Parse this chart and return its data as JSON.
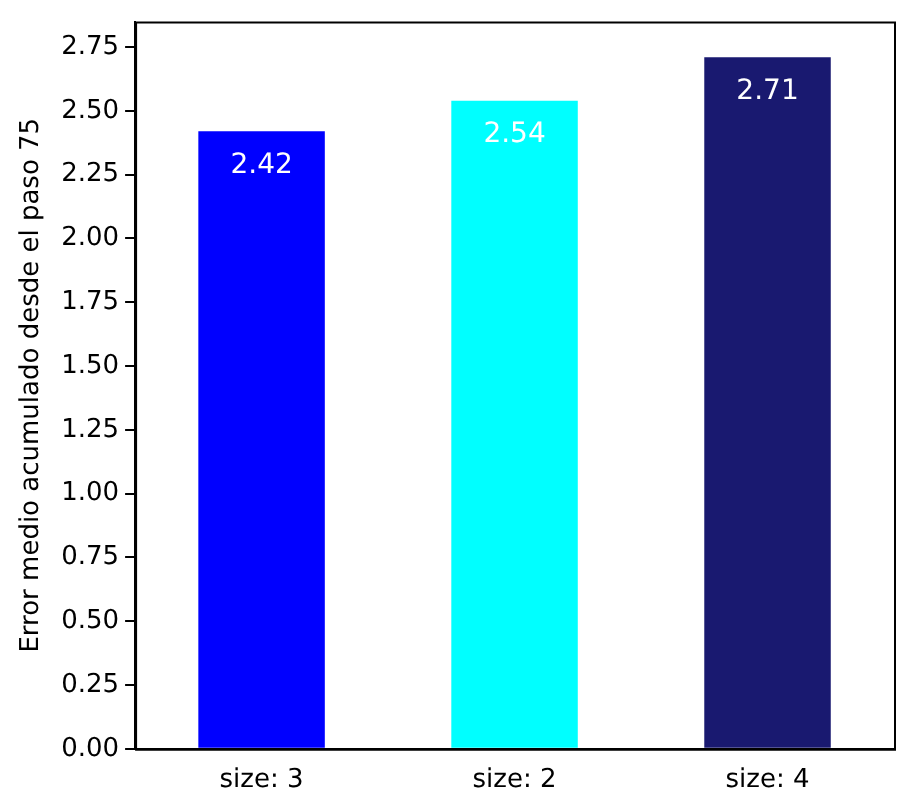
{
  "chart_data": {
    "type": "bar",
    "ylabel": "Error medio acumulado desde el paso 75",
    "categories": [
      "size: 3",
      "size: 2",
      "size: 4"
    ],
    "values": [
      2.42,
      2.54,
      2.71
    ],
    "colors": [
      "#0000ff",
      "#00ffff",
      "#191970"
    ],
    "ylim": [
      0,
      2.85
    ],
    "yticks": [
      {
        "value": 0,
        "label": "0.00"
      },
      0.25,
      {
        "value": 0.5,
        "label": "0.50"
      },
      0.75,
      {
        "value": 1,
        "label": "1.00"
      },
      1.25,
      {
        "value": 1.5,
        "label": "1.50"
      },
      1.75,
      {
        "value": 2,
        "label": "2.00"
      },
      2.25,
      {
        "value": 2.5,
        "label": "2.50"
      },
      2.75
    ],
    "grid": false,
    "legend": false,
    "data_labels": true
  }
}
